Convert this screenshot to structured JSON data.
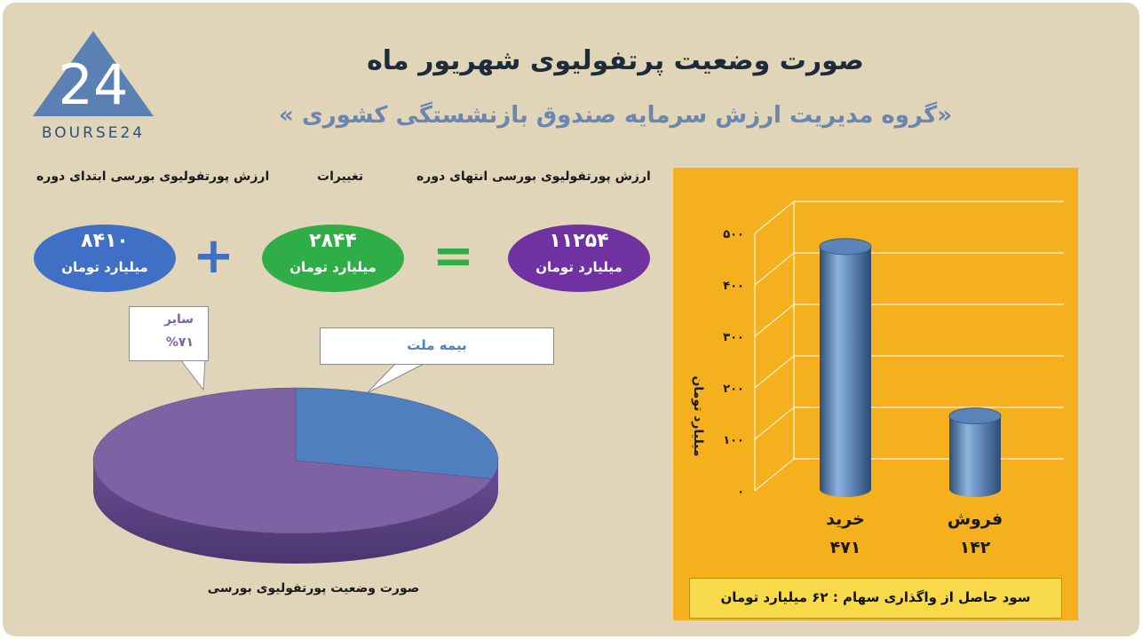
{
  "header": {
    "title": "صورت وضعیت پرتفولیوی شهریور ماه",
    "subtitle": "«گروه مدیریت ارزش سرمایه صندوق بازنشستگی کشوری »"
  },
  "logo": {
    "digits": "24",
    "brand": "BOURSE24"
  },
  "summary": {
    "label_start": "ارزش پورتفولیوی بورسی ابتدای دوره",
    "label_change": "تغییرات",
    "label_end": "ارزش پورتفولیوی بورسی انتهای دوره",
    "start_value": "۸۴۱۰",
    "change_value": "۲۸۴۴",
    "end_value": "۱۱۲۵۴",
    "unit": "میلیارد تومان",
    "plus": "+",
    "equals": "="
  },
  "colors": {
    "start": "#3f70c6",
    "change": "#2fae47",
    "end": "#7032a0",
    "panel": "#f5b01e"
  },
  "chart_data": [
    {
      "type": "pie",
      "title": "صورت وضعیت پورتفولیوی بورسی",
      "slices": [
        {
          "label": "سایر",
          "value": 71,
          "value_label": "%۷۱",
          "color": "#7e62a4"
        },
        {
          "label": "بیمه ملت",
          "value": 29,
          "color": "#4f7fbe"
        }
      ]
    },
    {
      "type": "bar",
      "categories": [
        "خرید",
        "فروش"
      ],
      "values": [
        471,
        142
      ],
      "value_labels": [
        "۴۷۱",
        "۱۴۲"
      ],
      "ylabel": "میلیارد تومان",
      "ylim": [
        0,
        500
      ],
      "yticks": [
        0,
        100,
        200,
        300,
        400,
        500
      ],
      "ytick_labels": [
        "۰",
        "۱۰۰",
        "۲۰۰",
        "۳۰۰",
        "۴۰۰",
        "۵۰۰"
      ],
      "grid": true
    }
  ],
  "footer": {
    "text": "سود حاصل از واگذاری سهام :  ۶۲ میلیارد تومان"
  }
}
